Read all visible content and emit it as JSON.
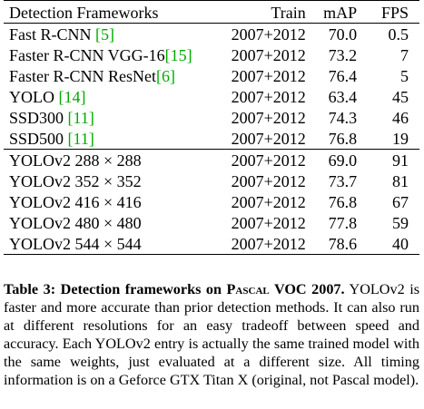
{
  "table": {
    "headers": {
      "framework": "Detection Frameworks",
      "train": "Train",
      "map": "mAP",
      "fps": "FPS"
    },
    "rows": [
      {
        "name": "Fast R-CNN ",
        "ref": "[5]",
        "train": "2007+2012",
        "map": "70.0",
        "fps": "0.5"
      },
      {
        "name": "Faster R-CNN VGG-16",
        "ref": "[15]",
        "train": "2007+2012",
        "map": "73.2",
        "fps": "7"
      },
      {
        "name": "Faster R-CNN ResNet",
        "ref": "[6]",
        "train": "2007+2012",
        "map": "76.4",
        "fps": "5"
      },
      {
        "name": "YOLO ",
        "ref": "[14]",
        "train": "2007+2012",
        "map": "63.4",
        "fps": "45"
      },
      {
        "name": "SSD300 ",
        "ref": "[11]",
        "train": "2007+2012",
        "map": "74.3",
        "fps": "46"
      },
      {
        "name": "SSD500 ",
        "ref": "[11]",
        "train": "2007+2012",
        "map": "76.8",
        "fps": "19"
      },
      {
        "name": "YOLOv2 288 × 288",
        "ref": "",
        "train": "2007+2012",
        "map": "69.0",
        "fps": "91"
      },
      {
        "name": "YOLOv2 352 × 352",
        "ref": "",
        "train": "2007+2012",
        "map": "73.7",
        "fps": "81"
      },
      {
        "name": "YOLOv2 416 × 416",
        "ref": "",
        "train": "2007+2012",
        "map": "76.8",
        "fps": "67"
      },
      {
        "name": "YOLOv2 480 × 480",
        "ref": "",
        "train": "2007+2012",
        "map": "77.8",
        "fps": "59"
      },
      {
        "name": "YOLOv2 544 × 544",
        "ref": "",
        "train": "2007+2012",
        "map": "78.6",
        "fps": "40"
      }
    ]
  },
  "caption": {
    "label_prefix": "Table 3: Detection frameworks on ",
    "label_pascal": "Pascal",
    "label_suffix": " VOC 2007.",
    "body": "YOLOv2 is faster and more accurate than prior detection methods. It can also run at different resolutions for an easy tradeoff between speed and accuracy. Each YOLOv2 entry is actually the same trained model with the same weights, just evaluated at a different size. All timing information is on a Geforce GTX Titan X (original, not Pascal model)."
  },
  "colors": {
    "reference_link": "#00aa00",
    "text": "#000000"
  }
}
